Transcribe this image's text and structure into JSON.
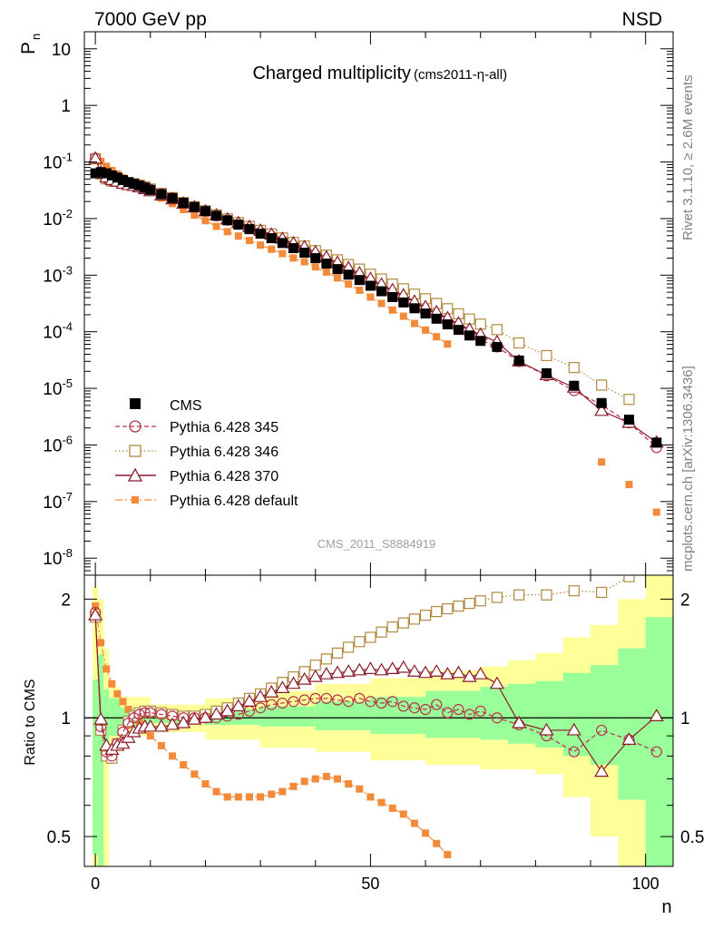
{
  "header": {
    "left": "7000 GeV pp",
    "right": "NSD"
  },
  "side_text": {
    "rivet": "Rivet 3.1.10, ≥ 2.6M events",
    "mcplots": "mcplots.cern.ch [arXiv:1306.3436]"
  },
  "analysis_label": "CMS_2011_S8884919",
  "colors": {
    "cms": "#000000",
    "p345": "#b8334a",
    "p346": "#b08a3e",
    "p370": "#8b1a2b",
    "pdef": "#f28a3a",
    "band_yellow": "#ffff99",
    "band_green": "#99ff99"
  },
  "chart_data": {
    "type": "scatter",
    "title": "Charged multiplicity",
    "subtitle": "(cms2011-η-all)",
    "ylabel_main": "P",
    "ylabel_main_sub": "n",
    "ylabel_ratio": "Ratio to CMS",
    "xlabel": "n",
    "xlim": [
      -2,
      105
    ],
    "ylim_main": [
      5e-09,
      20
    ],
    "ylim_ratio": [
      0.42,
      2.3
    ],
    "x_ticks": [
      0,
      50,
      100
    ],
    "y_ticks_main": [
      "10",
      "1",
      "10^-1",
      "10^-2",
      "10^-3",
      "10^-4",
      "10^-5",
      "10^-6",
      "10^-7",
      "10^-8"
    ],
    "y_ticks_ratio": [
      "0.5",
      "1",
      "2"
    ],
    "legend": [
      {
        "key": "cms",
        "label": "CMS"
      },
      {
        "key": "p345",
        "label": "Pythia 6.428 345"
      },
      {
        "key": "p346",
        "label": "Pythia 6.428 346"
      },
      {
        "key": "p370",
        "label": "Pythia 6.428 370"
      },
      {
        "key": "pdef",
        "label": "Pythia 6.428 default"
      }
    ],
    "cms_points": [
      {
        "x": 0,
        "y": 0.063
      },
      {
        "x": 1,
        "y": 0.066
      },
      {
        "x": 2,
        "y": 0.063
      },
      {
        "x": 3,
        "y": 0.058
      },
      {
        "x": 4,
        "y": 0.053
      },
      {
        "x": 5,
        "y": 0.048
      },
      {
        "x": 6,
        "y": 0.044
      },
      {
        "x": 7,
        "y": 0.041
      },
      {
        "x": 8,
        "y": 0.038
      },
      {
        "x": 9,
        "y": 0.035
      },
      {
        "x": 10,
        "y": 0.032
      },
      {
        "x": 12,
        "y": 0.027
      },
      {
        "x": 14,
        "y": 0.023
      },
      {
        "x": 16,
        "y": 0.019
      },
      {
        "x": 18,
        "y": 0.016
      },
      {
        "x": 20,
        "y": 0.0135
      },
      {
        "x": 22,
        "y": 0.0112
      },
      {
        "x": 24,
        "y": 0.0093
      },
      {
        "x": 26,
        "y": 0.0078
      },
      {
        "x": 28,
        "y": 0.0065
      },
      {
        "x": 30,
        "y": 0.0054
      },
      {
        "x": 32,
        "y": 0.0045
      },
      {
        "x": 34,
        "y": 0.0037
      },
      {
        "x": 36,
        "y": 0.003
      },
      {
        "x": 38,
        "y": 0.0025
      },
      {
        "x": 40,
        "y": 0.002
      },
      {
        "x": 42,
        "y": 0.0016
      },
      {
        "x": 44,
        "y": 0.00128
      },
      {
        "x": 46,
        "y": 0.00102
      },
      {
        "x": 48,
        "y": 0.00082
      },
      {
        "x": 50,
        "y": 0.00065
      },
      {
        "x": 52,
        "y": 0.00052
      },
      {
        "x": 54,
        "y": 0.00041
      },
      {
        "x": 56,
        "y": 0.00033
      },
      {
        "x": 58,
        "y": 0.00026
      },
      {
        "x": 60,
        "y": 0.00021
      },
      {
        "x": 62,
        "y": 0.00017
      },
      {
        "x": 64,
        "y": 0.000135
      },
      {
        "x": 66,
        "y": 0.000108
      },
      {
        "x": 68,
        "y": 8.6e-05
      },
      {
        "x": 70,
        "y": 6.9e-05
      },
      {
        "x": 73,
        "y": 5.4e-05
      },
      {
        "x": 77,
        "y": 3.1e-05
      },
      {
        "x": 82,
        "y": 1.85e-05
      },
      {
        "x": 87,
        "y": 1.11e-05
      },
      {
        "x": 92,
        "y": 5.5e-06
      },
      {
        "x": 97,
        "y": 2.8e-06
      },
      {
        "x": 102,
        "y": 1.1e-06
      }
    ],
    "ratio_p345": [
      {
        "x": 0,
        "y": 1.85
      },
      {
        "x": 1,
        "y": 0.95
      },
      {
        "x": 2,
        "y": 0.82
      },
      {
        "x": 3,
        "y": 0.8
      },
      {
        "x": 4,
        "y": 0.86
      },
      {
        "x": 5,
        "y": 0.92
      },
      {
        "x": 6,
        "y": 0.97
      },
      {
        "x": 7,
        "y": 1.0
      },
      {
        "x": 8,
        "y": 1.02
      },
      {
        "x": 9,
        "y": 1.03
      },
      {
        "x": 10,
        "y": 1.03
      },
      {
        "x": 12,
        "y": 1.02
      },
      {
        "x": 14,
        "y": 1.01
      },
      {
        "x": 16,
        "y": 1.0
      },
      {
        "x": 18,
        "y": 1.0
      },
      {
        "x": 20,
        "y": 1.0
      },
      {
        "x": 22,
        "y": 1.0
      },
      {
        "x": 24,
        "y": 1.01
      },
      {
        "x": 26,
        "y": 1.02
      },
      {
        "x": 28,
        "y": 1.04
      },
      {
        "x": 30,
        "y": 1.06
      },
      {
        "x": 32,
        "y": 1.08
      },
      {
        "x": 34,
        "y": 1.09
      },
      {
        "x": 36,
        "y": 1.1
      },
      {
        "x": 38,
        "y": 1.11
      },
      {
        "x": 40,
        "y": 1.12
      },
      {
        "x": 42,
        "y": 1.12
      },
      {
        "x": 44,
        "y": 1.11
      },
      {
        "x": 46,
        "y": 1.1
      },
      {
        "x": 48,
        "y": 1.12
      },
      {
        "x": 50,
        "y": 1.1
      },
      {
        "x": 52,
        "y": 1.09
      },
      {
        "x": 54,
        "y": 1.1
      },
      {
        "x": 56,
        "y": 1.07
      },
      {
        "x": 58,
        "y": 1.06
      },
      {
        "x": 60,
        "y": 1.05
      },
      {
        "x": 62,
        "y": 1.08
      },
      {
        "x": 64,
        "y": 1.03
      },
      {
        "x": 66,
        "y": 1.05
      },
      {
        "x": 68,
        "y": 1.02
      },
      {
        "x": 70,
        "y": 1.04
      },
      {
        "x": 73,
        "y": 1.0
      },
      {
        "x": 77,
        "y": 0.96
      },
      {
        "x": 82,
        "y": 0.9
      },
      {
        "x": 87,
        "y": 0.82
      },
      {
        "x": 92,
        "y": 0.93
      },
      {
        "x": 97,
        "y": 0.88
      },
      {
        "x": 102,
        "y": 0.82
      }
    ],
    "ratio_p346": [
      {
        "x": 0,
        "y": 1.8
      },
      {
        "x": 1,
        "y": 0.93
      },
      {
        "x": 2,
        "y": 0.8
      },
      {
        "x": 3,
        "y": 0.79
      },
      {
        "x": 4,
        "y": 0.86
      },
      {
        "x": 5,
        "y": 0.93
      },
      {
        "x": 6,
        "y": 0.98
      },
      {
        "x": 7,
        "y": 1.01
      },
      {
        "x": 8,
        "y": 1.03
      },
      {
        "x": 9,
        "y": 1.04
      },
      {
        "x": 10,
        "y": 1.04
      },
      {
        "x": 12,
        "y": 1.03
      },
      {
        "x": 14,
        "y": 1.02
      },
      {
        "x": 16,
        "y": 1.01
      },
      {
        "x": 18,
        "y": 1.01
      },
      {
        "x": 20,
        "y": 1.02
      },
      {
        "x": 22,
        "y": 1.04
      },
      {
        "x": 24,
        "y": 1.06
      },
      {
        "x": 26,
        "y": 1.09
      },
      {
        "x": 28,
        "y": 1.12
      },
      {
        "x": 30,
        "y": 1.15
      },
      {
        "x": 32,
        "y": 1.19
      },
      {
        "x": 34,
        "y": 1.23
      },
      {
        "x": 36,
        "y": 1.27
      },
      {
        "x": 38,
        "y": 1.31
      },
      {
        "x": 40,
        "y": 1.36
      },
      {
        "x": 42,
        "y": 1.41
      },
      {
        "x": 44,
        "y": 1.46
      },
      {
        "x": 46,
        "y": 1.51
      },
      {
        "x": 48,
        "y": 1.56
      },
      {
        "x": 50,
        "y": 1.6
      },
      {
        "x": 52,
        "y": 1.65
      },
      {
        "x": 54,
        "y": 1.7
      },
      {
        "x": 56,
        "y": 1.74
      },
      {
        "x": 58,
        "y": 1.78
      },
      {
        "x": 60,
        "y": 1.82
      },
      {
        "x": 62,
        "y": 1.86
      },
      {
        "x": 64,
        "y": 1.89
      },
      {
        "x": 66,
        "y": 1.92
      },
      {
        "x": 68,
        "y": 1.95
      },
      {
        "x": 70,
        "y": 1.98
      },
      {
        "x": 73,
        "y": 2.02
      },
      {
        "x": 77,
        "y": 2.05
      },
      {
        "x": 82,
        "y": 2.05
      },
      {
        "x": 87,
        "y": 2.1
      },
      {
        "x": 92,
        "y": 2.08
      },
      {
        "x": 97,
        "y": 2.28
      }
    ],
    "ratio_p370": [
      {
        "x": 0,
        "y": 1.82
      },
      {
        "x": 1,
        "y": 0.99
      },
      {
        "x": 2,
        "y": 0.85
      },
      {
        "x": 3,
        "y": 0.83
      },
      {
        "x": 4,
        "y": 0.85
      },
      {
        "x": 5,
        "y": 0.86
      },
      {
        "x": 6,
        "y": 0.89
      },
      {
        "x": 7,
        "y": 0.92
      },
      {
        "x": 8,
        "y": 0.94
      },
      {
        "x": 9,
        "y": 0.95
      },
      {
        "x": 10,
        "y": 0.95
      },
      {
        "x": 12,
        "y": 0.95
      },
      {
        "x": 14,
        "y": 0.96
      },
      {
        "x": 16,
        "y": 0.97
      },
      {
        "x": 18,
        "y": 0.99
      },
      {
        "x": 20,
        "y": 1.0
      },
      {
        "x": 22,
        "y": 1.02
      },
      {
        "x": 24,
        "y": 1.04
      },
      {
        "x": 26,
        "y": 1.07
      },
      {
        "x": 28,
        "y": 1.1
      },
      {
        "x": 30,
        "y": 1.13
      },
      {
        "x": 32,
        "y": 1.16
      },
      {
        "x": 34,
        "y": 1.19
      },
      {
        "x": 36,
        "y": 1.22
      },
      {
        "x": 38,
        "y": 1.25
      },
      {
        "x": 40,
        "y": 1.27
      },
      {
        "x": 42,
        "y": 1.29
      },
      {
        "x": 44,
        "y": 1.3
      },
      {
        "x": 46,
        "y": 1.31
      },
      {
        "x": 48,
        "y": 1.32
      },
      {
        "x": 50,
        "y": 1.33
      },
      {
        "x": 52,
        "y": 1.32
      },
      {
        "x": 54,
        "y": 1.33
      },
      {
        "x": 56,
        "y": 1.34
      },
      {
        "x": 58,
        "y": 1.31
      },
      {
        "x": 60,
        "y": 1.3
      },
      {
        "x": 62,
        "y": 1.31
      },
      {
        "x": 64,
        "y": 1.29
      },
      {
        "x": 66,
        "y": 1.3
      },
      {
        "x": 68,
        "y": 1.27
      },
      {
        "x": 70,
        "y": 1.29
      },
      {
        "x": 73,
        "y": 1.22
      },
      {
        "x": 77,
        "y": 0.97
      },
      {
        "x": 82,
        "y": 0.93
      },
      {
        "x": 87,
        "y": 0.93
      },
      {
        "x": 92,
        "y": 0.73
      },
      {
        "x": 97,
        "y": 0.88
      },
      {
        "x": 102,
        "y": 1.01
      }
    ],
    "ratio_pdef": [
      {
        "x": 0,
        "y": 1.92
      },
      {
        "x": 1,
        "y": 1.55
      },
      {
        "x": 2,
        "y": 1.33
      },
      {
        "x": 3,
        "y": 1.22
      },
      {
        "x": 4,
        "y": 1.15
      },
      {
        "x": 5,
        "y": 1.1
      },
      {
        "x": 6,
        "y": 1.05
      },
      {
        "x": 7,
        "y": 1.01
      },
      {
        "x": 8,
        "y": 0.97
      },
      {
        "x": 9,
        "y": 0.94
      },
      {
        "x": 10,
        "y": 0.9
      },
      {
        "x": 12,
        "y": 0.85
      },
      {
        "x": 14,
        "y": 0.8
      },
      {
        "x": 16,
        "y": 0.76
      },
      {
        "x": 18,
        "y": 0.72
      },
      {
        "x": 20,
        "y": 0.68
      },
      {
        "x": 22,
        "y": 0.65
      },
      {
        "x": 24,
        "y": 0.63
      },
      {
        "x": 26,
        "y": 0.63
      },
      {
        "x": 28,
        "y": 0.63
      },
      {
        "x": 30,
        "y": 0.63
      },
      {
        "x": 32,
        "y": 0.64
      },
      {
        "x": 34,
        "y": 0.65
      },
      {
        "x": 36,
        "y": 0.67
      },
      {
        "x": 38,
        "y": 0.69
      },
      {
        "x": 40,
        "y": 0.7
      },
      {
        "x": 42,
        "y": 0.71
      },
      {
        "x": 44,
        "y": 0.7
      },
      {
        "x": 46,
        "y": 0.68
      },
      {
        "x": 48,
        "y": 0.66
      },
      {
        "x": 50,
        "y": 0.63
      },
      {
        "x": 52,
        "y": 0.61
      },
      {
        "x": 54,
        "y": 0.59
      },
      {
        "x": 56,
        "y": 0.57
      },
      {
        "x": 58,
        "y": 0.54
      },
      {
        "x": 60,
        "y": 0.51
      },
      {
        "x": 62,
        "y": 0.48
      },
      {
        "x": 64,
        "y": 0.45
      }
    ],
    "band_bins": [
      {
        "x0": -0.5,
        "x1": 0.5,
        "g": [
          0.45,
          1.25
        ],
        "y": [
          0.4,
          2.15
        ]
      },
      {
        "x0": 0.5,
        "x1": 1.5,
        "g": [
          0.4,
          1.45
        ],
        "y": [
          0.3,
          2.0
        ]
      },
      {
        "x0": 1.5,
        "x1": 2.5,
        "g": [
          0.82,
          1.18
        ],
        "y": [
          0.3,
          1.5
        ]
      },
      {
        "x0": 2.5,
        "x1": 4.5,
        "g": [
          0.9,
          1.12
        ],
        "y": [
          0.82,
          1.2
        ]
      },
      {
        "x0": 4.5,
        "x1": 10,
        "g": [
          0.95,
          1.06
        ],
        "y": [
          0.9,
          1.13
        ]
      },
      {
        "x0": 10,
        "x1": 20,
        "g": [
          0.97,
          1.04
        ],
        "y": [
          0.92,
          1.08
        ]
      },
      {
        "x0": 20,
        "x1": 30,
        "g": [
          0.96,
          1.05
        ],
        "y": [
          0.88,
          1.12
        ]
      },
      {
        "x0": 30,
        "x1": 40,
        "g": [
          0.95,
          1.07
        ],
        "y": [
          0.84,
          1.17
        ]
      },
      {
        "x0": 40,
        "x1": 50,
        "g": [
          0.93,
          1.1
        ],
        "y": [
          0.82,
          1.22
        ]
      },
      {
        "x0": 50,
        "x1": 60,
        "g": [
          0.91,
          1.13
        ],
        "y": [
          0.78,
          1.26
        ]
      },
      {
        "x0": 60,
        "x1": 70,
        "g": [
          0.89,
          1.17
        ],
        "y": [
          0.76,
          1.32
        ]
      },
      {
        "x0": 70,
        "x1": 75,
        "g": [
          0.88,
          1.2
        ],
        "y": [
          0.74,
          1.35
        ]
      },
      {
        "x0": 75,
        "x1": 80,
        "g": [
          0.86,
          1.22
        ],
        "y": [
          0.74,
          1.4
        ]
      },
      {
        "x0": 80,
        "x1": 85,
        "g": [
          0.84,
          1.24
        ],
        "y": [
          0.72,
          1.46
        ]
      },
      {
        "x0": 85,
        "x1": 90,
        "g": [
          0.8,
          1.3
        ],
        "y": [
          0.63,
          1.6
        ]
      },
      {
        "x0": 90,
        "x1": 95,
        "g": [
          0.76,
          1.36
        ],
        "y": [
          0.5,
          1.72
        ]
      },
      {
        "x0": 95,
        "x1": 100,
        "g": [
          0.62,
          1.5
        ],
        "y": [
          0.42,
          2.0
        ]
      },
      {
        "x0": 100,
        "x1": 105,
        "g": [
          0.42,
          1.8
        ],
        "y": [
          0.42,
          2.3
        ]
      }
    ],
    "pdef_main_factor_note": "default main-panel values = CMS value x default ratio"
  }
}
